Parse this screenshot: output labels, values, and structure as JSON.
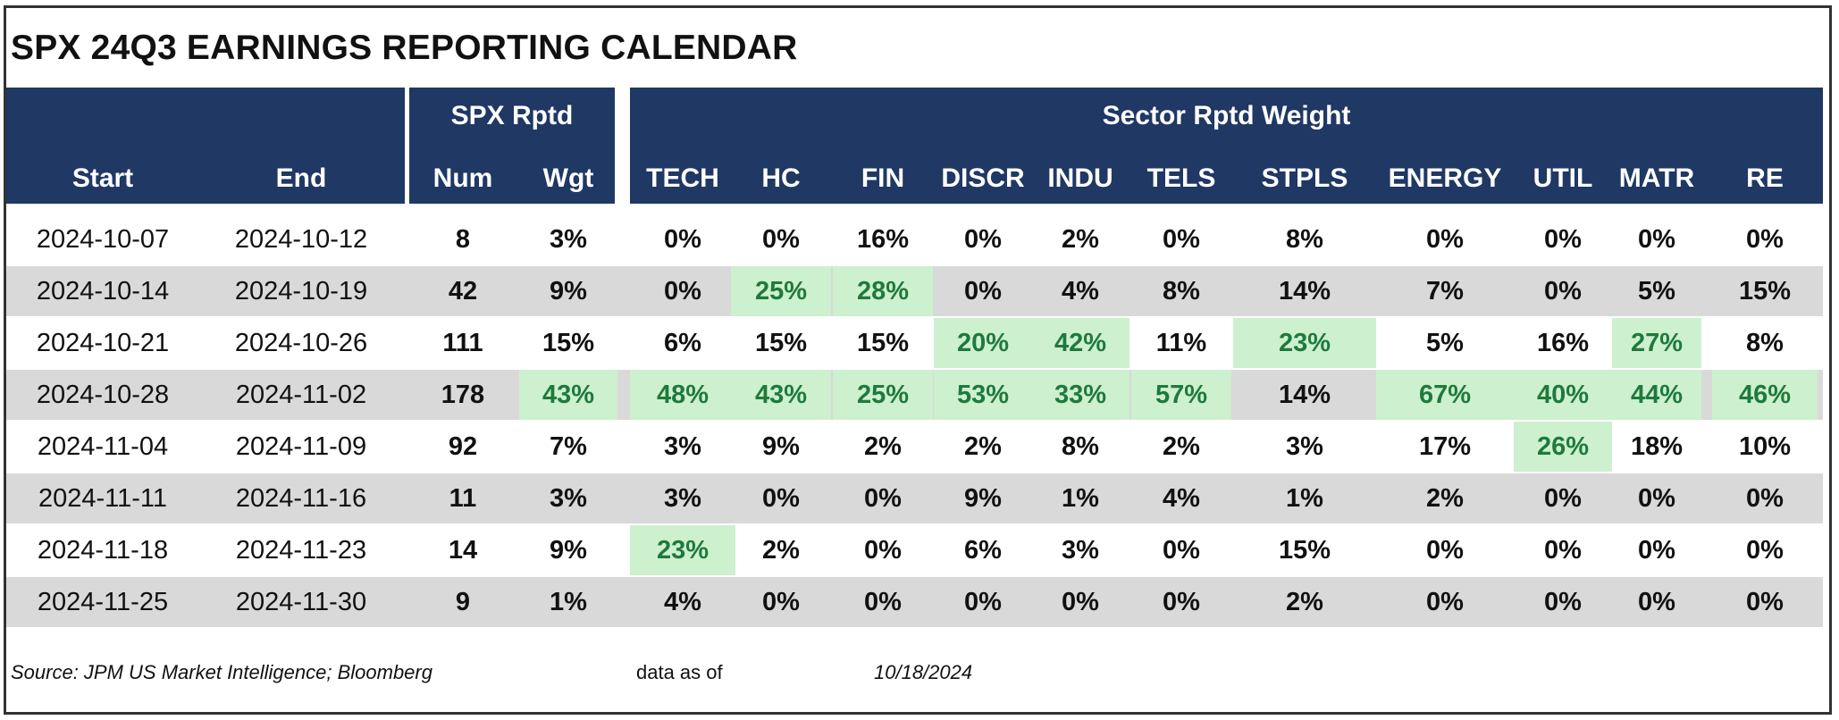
{
  "title": "SPX 24Q3 EARNINGS REPORTING CALENDAR",
  "colors": {
    "header_bg": "#1f3864",
    "alt_row": "#d9d9d9",
    "highlight_bg": "#cdf0ce",
    "highlight_text": "#1e7a3c"
  },
  "groups": {
    "spx": "SPX Rptd",
    "sector": "Sector Rptd Weight"
  },
  "columns": [
    "Start",
    "End",
    "Num",
    "Wgt",
    "TECH",
    "HC",
    "FIN",
    "DISCR",
    "INDU",
    "TELS",
    "STPLS",
    "ENERGY",
    "UTIL",
    "MATR",
    "RE"
  ],
  "rows": [
    {
      "cells": [
        "2024-10-07",
        "2024-10-12",
        "8",
        "3%",
        "0%",
        "0%",
        "16%",
        "0%",
        "2%",
        "0%",
        "8%",
        "0%",
        "0%",
        "0%",
        "0%"
      ],
      "highlight": []
    },
    {
      "cells": [
        "2024-10-14",
        "2024-10-19",
        "42",
        "9%",
        "0%",
        "25%",
        "28%",
        "0%",
        "4%",
        "8%",
        "14%",
        "7%",
        "0%",
        "5%",
        "15%"
      ],
      "highlight": [
        5,
        6
      ]
    },
    {
      "cells": [
        "2024-10-21",
        "2024-10-26",
        "111",
        "15%",
        "6%",
        "15%",
        "15%",
        "20%",
        "42%",
        "11%",
        "23%",
        "5%",
        "16%",
        "27%",
        "8%"
      ],
      "highlight": [
        7,
        8,
        10,
        13
      ]
    },
    {
      "cells": [
        "2024-10-28",
        "2024-11-02",
        "178",
        "43%",
        "48%",
        "43%",
        "25%",
        "53%",
        "33%",
        "57%",
        "14%",
        "67%",
        "40%",
        "44%",
        "46%"
      ],
      "highlight": [
        3,
        4,
        5,
        6,
        7,
        8,
        9,
        11,
        12,
        13,
        14
      ]
    },
    {
      "cells": [
        "2024-11-04",
        "2024-11-09",
        "92",
        "7%",
        "3%",
        "9%",
        "2%",
        "2%",
        "8%",
        "2%",
        "3%",
        "17%",
        "26%",
        "18%",
        "10%"
      ],
      "highlight": [
        12
      ]
    },
    {
      "cells": [
        "2024-11-11",
        "2024-11-16",
        "11",
        "3%",
        "3%",
        "0%",
        "0%",
        "9%",
        "1%",
        "4%",
        "1%",
        "2%",
        "0%",
        "0%",
        "0%"
      ],
      "highlight": []
    },
    {
      "cells": [
        "2024-11-18",
        "2024-11-23",
        "14",
        "9%",
        "23%",
        "2%",
        "0%",
        "6%",
        "3%",
        "0%",
        "15%",
        "0%",
        "0%",
        "0%",
        "0%"
      ],
      "highlight": [
        4
      ]
    },
    {
      "cells": [
        "2024-11-25",
        "2024-11-30",
        "9",
        "1%",
        "4%",
        "0%",
        "0%",
        "0%",
        "0%",
        "0%",
        "2%",
        "0%",
        "0%",
        "0%",
        "0%"
      ],
      "highlight": []
    }
  ],
  "footer": {
    "source": "Source: JPM US Market Intelligence; Bloomberg",
    "asof_label": "data as of",
    "asof_date": "10/18/2024"
  }
}
